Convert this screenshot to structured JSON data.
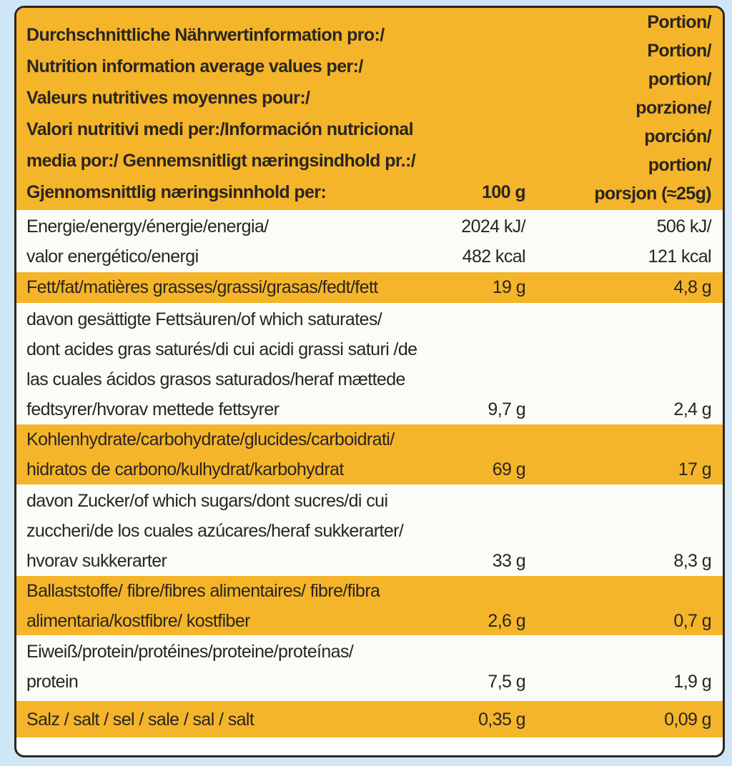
{
  "header": {
    "left_lines": [
      "Durchschnittliche Nährwertinformation pro:/",
      "Nutrition information average values per:/",
      "Valeurs nutritives moyennes pour:/",
      "Valori nutritivi medi per:/Información nutricional",
      "media por:/ Gennemsnitligt næringsindhold pr.:/",
      "Gjennomsnittlig næringsinnhold per:"
    ],
    "per100": "100 g",
    "right_lines": [
      "Portion/",
      "Portion/",
      "portion/",
      "porzione/",
      "porción/",
      "portion/",
      "porsjon (≈25g)"
    ]
  },
  "rows": [
    {
      "label": [
        "Energie/energy/énergie/energia/",
        "valor energético/energi"
      ],
      "per100": [
        "2024 kJ/",
        "482 kcal"
      ],
      "portion": [
        "506 kJ/",
        "121 kcal"
      ]
    },
    {
      "label": [
        "Fett/fat/matières grasses/grassi/grasas/fedt/fett"
      ],
      "per100": [
        "19 g"
      ],
      "portion": [
        "4,8 g"
      ]
    },
    {
      "label": [
        "davon gesättigte Fettsäuren/of which saturates/",
        "dont acides gras saturés/di cui acidi grassi saturi /de",
        "las cuales ácidos grasos saturados/heraf mættede",
        "fedtsyrer/hvorav mettede fettsyrer"
      ],
      "per100": [
        "9,7 g"
      ],
      "portion": [
        "2,4 g"
      ]
    },
    {
      "label": [
        "Kohlenhydrate/carbohydrate/glucides/carboidrati/",
        "hidratos de carbono/kulhydrat/karbohydrat"
      ],
      "per100": [
        "69 g"
      ],
      "portion": [
        "17 g"
      ]
    },
    {
      "label": [
        "davon Zucker/of which sugars/dont sucres/di cui",
        "zuccheri/de los cuales azúcares/heraf sukkerarter/",
        "hvorav sukkerarter"
      ],
      "per100": [
        "33 g"
      ],
      "portion": [
        "8,3 g"
      ]
    },
    {
      "label": [
        "Ballaststoffe/ fibre/fibres alimentaires/ fibre/fibra",
        "alimentaria/kostfibre/ kostfiber"
      ],
      "per100": [
        "2,6 g"
      ],
      "portion": [
        "0,7 g"
      ]
    },
    {
      "label": [
        "Eiweiß/protein/protéines/proteine/proteínas/",
        "protein"
      ],
      "per100": [
        "7,5 g"
      ],
      "portion": [
        "1,9 g"
      ]
    },
    {
      "label": [
        "Salz / salt / sel / sale / sal / salt"
      ],
      "per100": [
        "0,35 g"
      ],
      "portion": [
        "0,09 g"
      ]
    }
  ]
}
